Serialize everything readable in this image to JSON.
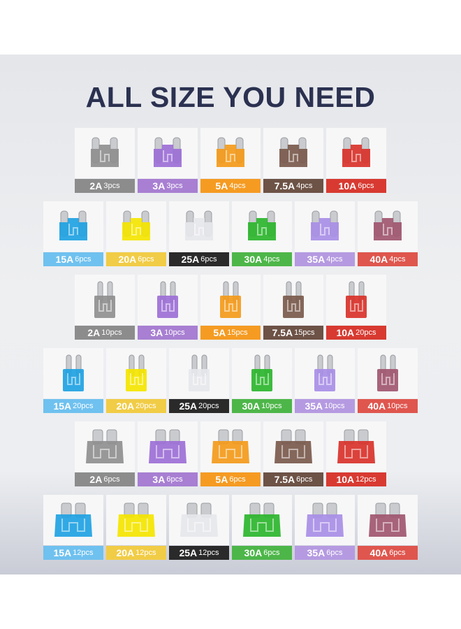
{
  "title": "ALL SIZE YOU NEED",
  "rows": [
    {
      "fuse_type": "low-profile-mini",
      "items": [
        {
          "amp": "2A",
          "qty": "3pcs",
          "label_color": "#8c8c8c",
          "fuse_color": "#8f8f8f"
        },
        {
          "amp": "3A",
          "qty": "3pcs",
          "label_color": "#a87fd2",
          "fuse_color": "#9c6fd6"
        },
        {
          "amp": "5A",
          "qty": "4pcs",
          "label_color": "#f59b22",
          "fuse_color": "#f39a1a"
        },
        {
          "amp": "7.5A",
          "qty": "4pcs",
          "label_color": "#6d5246",
          "fuse_color": "#7a5a4c"
        },
        {
          "amp": "10A",
          "qty": "6pcs",
          "label_color": "#d83a31",
          "fuse_color": "#d8322a"
        }
      ]
    },
    {
      "fuse_type": "low-profile-mini",
      "items": [
        {
          "amp": "15A",
          "qty": "6pcs",
          "label_color": "#6fc1ef",
          "fuse_color": "#1fa2e2"
        },
        {
          "amp": "20A",
          "qty": "6pcs",
          "label_color": "#f1cc46",
          "fuse_color": "#f4e500"
        },
        {
          "amp": "25A",
          "qty": "6pcs",
          "label_color": "#2a2a2a",
          "fuse_color": "#e6e7ec"
        },
        {
          "amp": "30A",
          "qty": "4pcs",
          "label_color": "#4db649",
          "fuse_color": "#2bb52c"
        },
        {
          "amp": "35A",
          "qty": "4pcs",
          "label_color": "#b59ae1",
          "fuse_color": "#a88ee6"
        },
        {
          "amp": "40A",
          "qty": "4pcs",
          "label_color": "#df564e",
          "fuse_color": "#a0566f"
        }
      ]
    },
    {
      "fuse_type": "mini",
      "items": [
        {
          "amp": "2A",
          "qty": "10pcs",
          "label_color": "#8c8c8c",
          "fuse_color": "#8f8f8f"
        },
        {
          "amp": "3A",
          "qty": "10pcs",
          "label_color": "#a87fd2",
          "fuse_color": "#9c6fd6"
        },
        {
          "amp": "5A",
          "qty": "15pcs",
          "label_color": "#f59b22",
          "fuse_color": "#f39a1a"
        },
        {
          "amp": "7.5A",
          "qty": "15pcs",
          "label_color": "#6d5246",
          "fuse_color": "#7a5a4c"
        },
        {
          "amp": "10A",
          "qty": "20pcs",
          "label_color": "#d83a31",
          "fuse_color": "#d8322a"
        }
      ]
    },
    {
      "fuse_type": "mini",
      "items": [
        {
          "amp": "15A",
          "qty": "20pcs",
          "label_color": "#6fc1ef",
          "fuse_color": "#1fa2e2"
        },
        {
          "amp": "20A",
          "qty": "20pcs",
          "label_color": "#f1cc46",
          "fuse_color": "#f4e500"
        },
        {
          "amp": "25A",
          "qty": "20pcs",
          "label_color": "#2a2a2a",
          "fuse_color": "#e6e7ec"
        },
        {
          "amp": "30A",
          "qty": "10pcs",
          "label_color": "#4db649",
          "fuse_color": "#2bb52c"
        },
        {
          "amp": "35A",
          "qty": "10pcs",
          "label_color": "#b59ae1",
          "fuse_color": "#a88ee6"
        },
        {
          "amp": "40A",
          "qty": "10pcs",
          "label_color": "#df564e",
          "fuse_color": "#a0566f"
        }
      ]
    },
    {
      "fuse_type": "standard",
      "items": [
        {
          "amp": "2A",
          "qty": "6pcs",
          "label_color": "#8c8c8c",
          "fuse_color": "#8f8f8f"
        },
        {
          "amp": "3A",
          "qty": "6pcs",
          "label_color": "#a87fd2",
          "fuse_color": "#9c6fd6"
        },
        {
          "amp": "5A",
          "qty": "6pcs",
          "label_color": "#f59b22",
          "fuse_color": "#f39a1a"
        },
        {
          "amp": "7.5A",
          "qty": "6pcs",
          "label_color": "#6d5246",
          "fuse_color": "#7a5a4c"
        },
        {
          "amp": "10A",
          "qty": "12pcs",
          "label_color": "#d83a31",
          "fuse_color": "#d8322a"
        }
      ]
    },
    {
      "fuse_type": "standard",
      "items": [
        {
          "amp": "15A",
          "qty": "12pcs",
          "label_color": "#6fc1ef",
          "fuse_color": "#1fa2e2"
        },
        {
          "amp": "20A",
          "qty": "12pcs",
          "label_color": "#f1cc46",
          "fuse_color": "#f4e500"
        },
        {
          "amp": "25A",
          "qty": "12pcs",
          "label_color": "#2a2a2a",
          "fuse_color": "#e6e7ec"
        },
        {
          "amp": "30A",
          "qty": "6pcs",
          "label_color": "#4db649",
          "fuse_color": "#2bb52c"
        },
        {
          "amp": "35A",
          "qty": "6pcs",
          "label_color": "#b59ae1",
          "fuse_color": "#a88ee6"
        },
        {
          "amp": "40A",
          "qty": "6pcs",
          "label_color": "#df564e",
          "fuse_color": "#a0566f"
        }
      ]
    }
  ]
}
